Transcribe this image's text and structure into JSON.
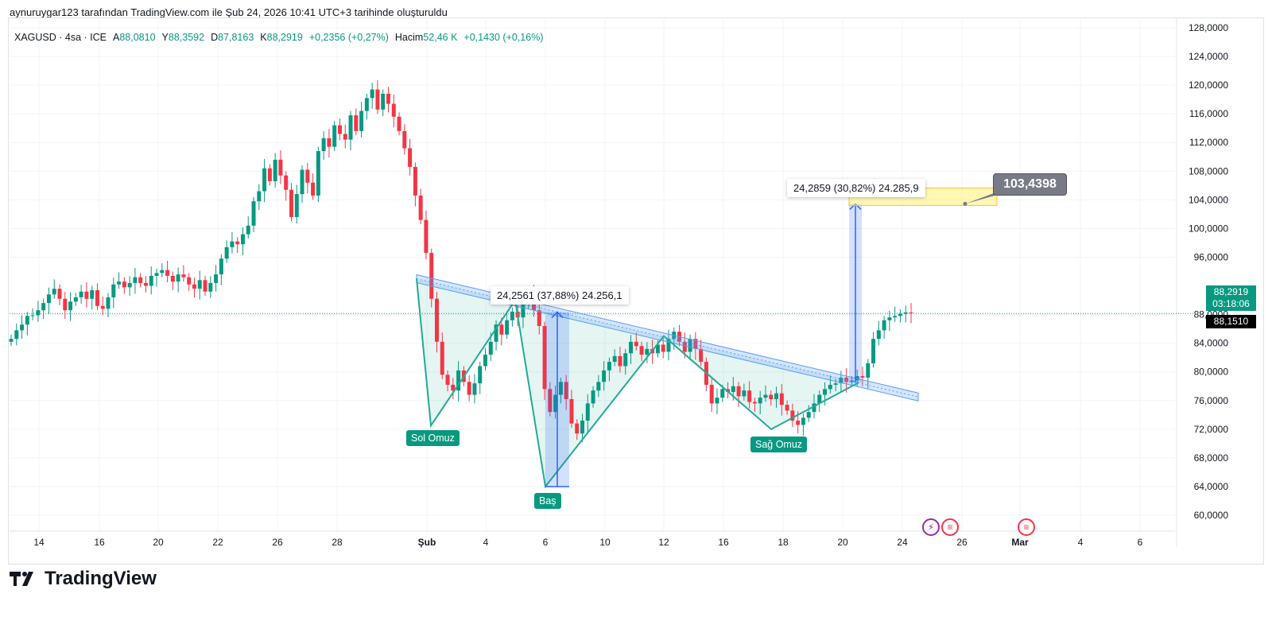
{
  "attribution": "aynuruygar123 tarafından TradingView.com ile Şub 24, 2026 10:41 UTC+3 tarihinde oluşturuldu",
  "legend": {
    "symbol": "XAGUSD · 4sa · ICE",
    "open_label": "A",
    "open": "88,0810",
    "high_label": "Y",
    "high": "88,3592",
    "low_label": "D",
    "low": "87,8163",
    "close_label": "K",
    "close": "88,2919",
    "change": "+0,2356 (+0,27%)",
    "volume_label": "Hacim",
    "volume": "52,46 K",
    "volume_change": "+0,1430 (+0,16%)"
  },
  "price_tags": {
    "last_price": "88,2919",
    "countdown": "03:18:06",
    "dotted_line_price": "88,1510"
  },
  "annotations": {
    "head_measure": "24,2561 (37,88%) 24.256,1",
    "target_measure": "24,2859 (30,82%) 24.285,9",
    "target_price": "103,4398",
    "left_shoulder": "Sol Omuz",
    "head": "Baş",
    "right_shoulder": "Sağ Omuz"
  },
  "brand": "TradingView",
  "colors": {
    "up": "#089981",
    "down": "#f23645",
    "pattern_line": "#22ab94",
    "neckline": "#5b9cf6",
    "measure": "#2962ff",
    "target_box": "#fff176",
    "grid": "#f0f3fa"
  },
  "chart_data": {
    "type": "candlestick",
    "symbol": "XAGUSD",
    "timeframe": "4sa",
    "ylim": [
      58,
      130
    ],
    "y_ticks": [
      60,
      64,
      68,
      72,
      76,
      80,
      84,
      88,
      96,
      100,
      104,
      108,
      112,
      116,
      120,
      124,
      128
    ],
    "y_tick_labels": [
      "60,0000",
      "64,0000",
      "68,0000",
      "72,0000",
      "76,0000",
      "80,0000",
      "84,0000",
      "88,0000",
      "96,0000",
      "100,0000",
      "104,0000",
      "108,0000",
      "112,0000",
      "116,0000",
      "120,0000",
      "124,0000",
      "128,0000"
    ],
    "x_tick_labels": [
      "14",
      "16",
      "20",
      "22",
      "26",
      "28",
      "Şub",
      "4",
      "6",
      "10",
      "12",
      "16",
      "18",
      "20",
      "24",
      "26",
      "Mar",
      "4",
      "6"
    ],
    "grid": true,
    "candles_close": [
      84.6,
      85.8,
      86.6,
      87.8,
      87.9,
      88.6,
      89.6,
      90.8,
      91.6,
      90.2,
      88.6,
      89.8,
      90.4,
      91.2,
      90.2,
      91.4,
      89.2,
      88.8,
      90.4,
      92.2,
      92.6,
      91.8,
      92.4,
      93.2,
      92.4,
      92.0,
      93.4,
      93.8,
      94.2,
      93.4,
      92.6,
      93.6,
      93.2,
      92.2,
      91.6,
      92.8,
      91.2,
      92.4,
      93.6,
      95.8,
      97.4,
      98.2,
      97.8,
      99.2,
      100.4,
      103.8,
      105.2,
      108.4,
      106.6,
      109.6,
      107.4,
      105.4,
      101.6,
      104.8,
      108.2,
      106.4,
      104.6,
      110.8,
      112.6,
      111.4,
      114.4,
      113.2,
      112.4,
      115.8,
      113.6,
      116.4,
      118.2,
      119.4,
      116.6,
      118.8,
      117.4,
      115.6,
      113.6,
      111.2,
      108.6,
      104.6,
      101.2,
      96.6,
      90.2,
      84.2,
      79.6,
      78.2,
      77.4,
      80.2,
      78.6,
      76.8,
      78.4,
      80.8,
      82.4,
      84.2,
      86.6,
      85.2,
      87.2,
      88.4,
      87.6,
      89.4,
      91.2,
      88.6,
      86.4,
      77.6,
      74.4,
      76.8,
      78.6,
      76.2,
      72.8,
      71.4,
      73.2,
      75.6,
      77.4,
      78.6,
      80.2,
      81.4,
      82.2,
      80.8,
      82.6,
      84.2,
      83.6,
      82.4,
      83.2,
      82.6,
      83.8,
      82.8,
      84.6,
      85.6,
      84.2,
      82.8,
      84.6,
      83.2,
      81.4,
      78.2,
      75.6,
      76.4,
      77.6,
      77.2,
      78.0,
      76.6,
      77.4,
      75.8,
      75.6,
      76.4,
      76.8,
      76.2,
      77.0,
      75.4,
      74.6,
      73.2,
      72.6,
      73.6,
      74.4,
      75.6,
      76.8,
      77.6,
      78.2,
      78.4,
      79.2,
      78.6,
      78.8,
      79.4,
      79.2,
      81.2,
      84.6,
      85.8,
      87.2,
      87.6,
      87.8,
      88.1,
      88.3,
      88.29
    ],
    "neckline": {
      "from_price": 93.0,
      "to_price": 76.5
    },
    "pattern_points": {
      "left_shoulder_low": 72.5,
      "head_low": 64.0,
      "right_shoulder_low": 72.0,
      "peak_1": 90.0,
      "peak_2": 85.0,
      "breakout": 78.5
    },
    "head_measure_value": "24,2561",
    "target_price": 103.4398,
    "last_price": 88.2919,
    "dotted_line_price": 88.151
  }
}
